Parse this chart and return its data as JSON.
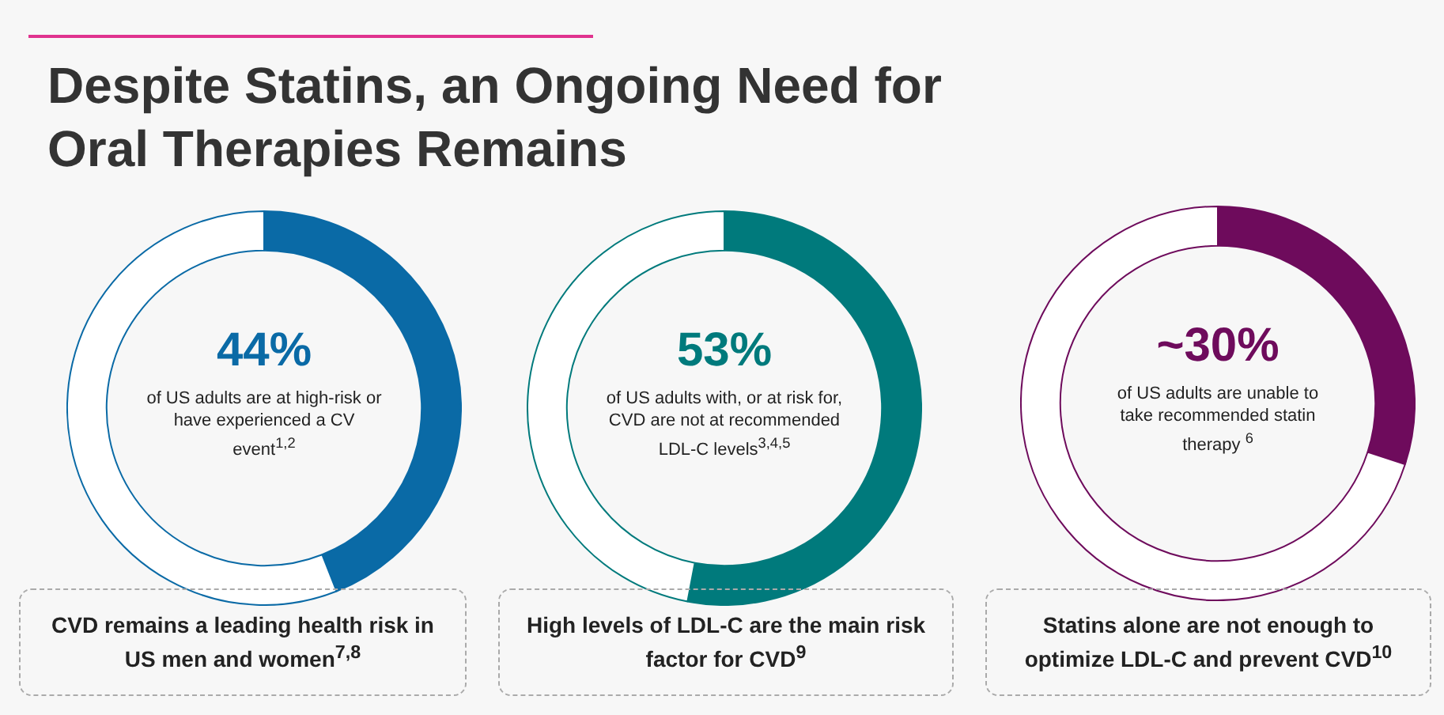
{
  "chart_data": [
    {
      "type": "other",
      "title": "Despite Statins, an Ongoing Need for Oral Therapies Remains"
    },
    {
      "type": "donut",
      "categories": [
        null,
        null
      ],
      "values": [
        44,
        56
      ],
      "colors": [
        "#0a6aa6",
        "#ffffff"
      ],
      "value_labels": [
        "44%",
        null
      ],
      "subtitle": "of US adults are at high-risk or have experienced a CV event$^{1,2}$",
      "annotations": [
        "CVD remains a leading health risk in US men and women$^{7,8}$"
      ]
    },
    {
      "type": "donut",
      "categories": [
        null,
        null
      ],
      "values": [
        53,
        47
      ],
      "colors": [
        "#007a7c",
        "#ffffff"
      ],
      "value_labels": [
        "53%",
        null
      ],
      "subtitle": "of US adults with, or at risk for, CVD are not at recommended LDL-C levels$^{3,4,5}$",
      "annotations": [
        "High levels of LDL-C are the main risk factor for CVD$^{9}$"
      ]
    },
    {
      "type": "donut",
      "categories": [
        null,
        null
      ],
      "values": [
        30,
        70
      ],
      "colors": [
        "#6e0b5c",
        "#ffffff"
      ],
      "value_labels": [
        "~30%",
        null
      ],
      "subtitle": "of US adults are unable to take recommended statin therapy $^{6}$",
      "annotations": [
        "Statins alone are not enough to optimize LDL-C and prevent CVD$^{10}$"
      ]
    }
  ]
}
